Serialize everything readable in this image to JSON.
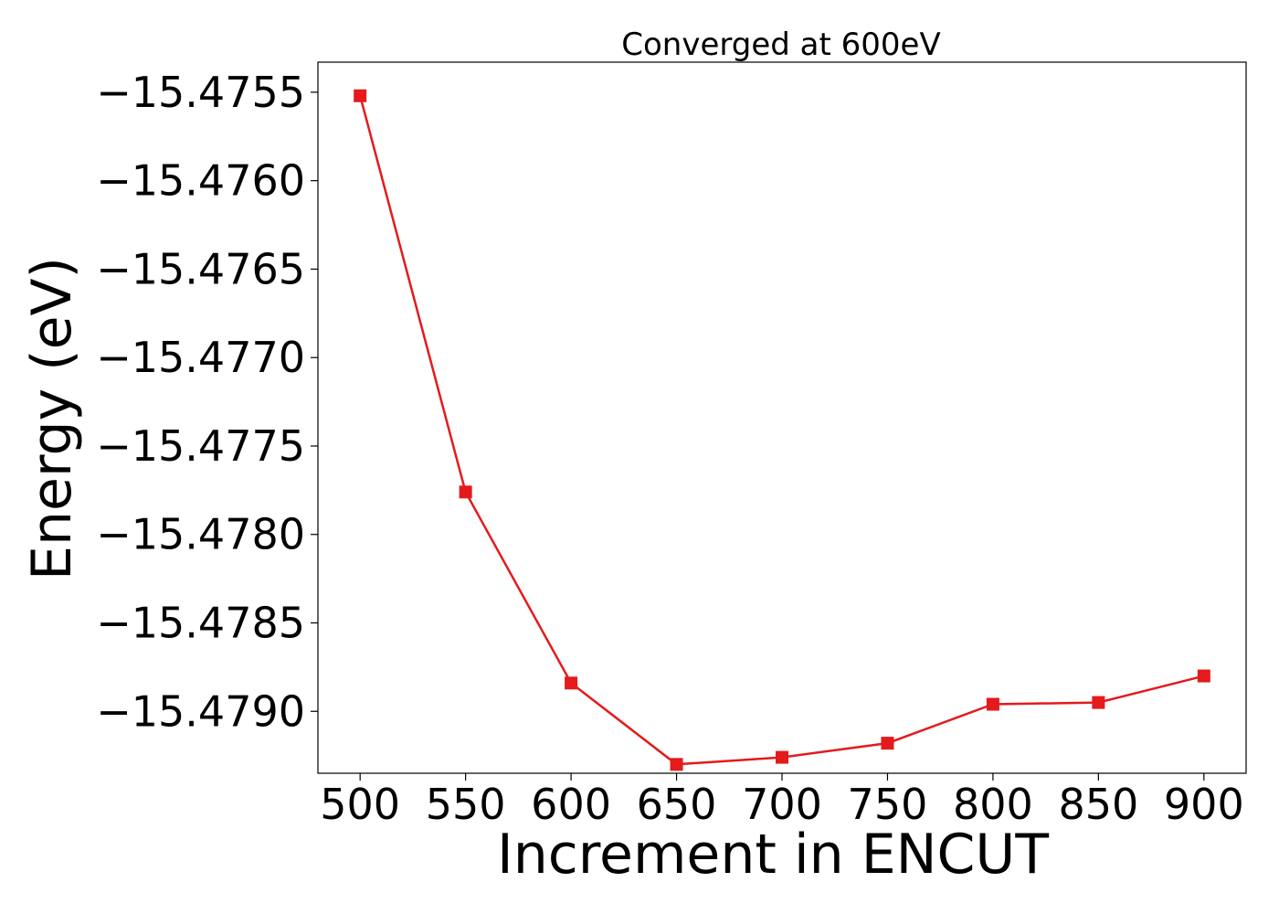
{
  "chart_data": {
    "type": "line",
    "title": "Converged at 600eV",
    "xlabel": "Increment in ENCUT",
    "ylabel": "Energy (eV)",
    "x": [
      500,
      550,
      600,
      650,
      700,
      750,
      800,
      850,
      900
    ],
    "series": [
      {
        "values": [
          -15.47552,
          -15.47776,
          -15.47884,
          -15.4793,
          -15.47926,
          -15.47918,
          -15.47896,
          -15.47895,
          -15.4788
        ],
        "color": "#e41a1c",
        "marker": "square"
      }
    ],
    "x_ticks": [
      500,
      550,
      600,
      650,
      700,
      750,
      800,
      850,
      900
    ],
    "x_tick_labels": [
      "500",
      "550",
      "600",
      "650",
      "700",
      "750",
      "800",
      "850",
      "900"
    ],
    "y_ticks": [
      -15.4755,
      -15.476,
      -15.4765,
      -15.477,
      -15.4775,
      -15.478,
      -15.4785,
      -15.479
    ],
    "y_tick_labels": [
      "−15.4755",
      "−15.4760",
      "−15.4765",
      "−15.4770",
      "−15.4775",
      "−15.4780",
      "−15.4785",
      "−15.4790"
    ],
    "xlim": [
      480,
      920
    ],
    "ylim": [
      -15.47935,
      -15.47533
    ],
    "grid": false,
    "legend": "none"
  }
}
